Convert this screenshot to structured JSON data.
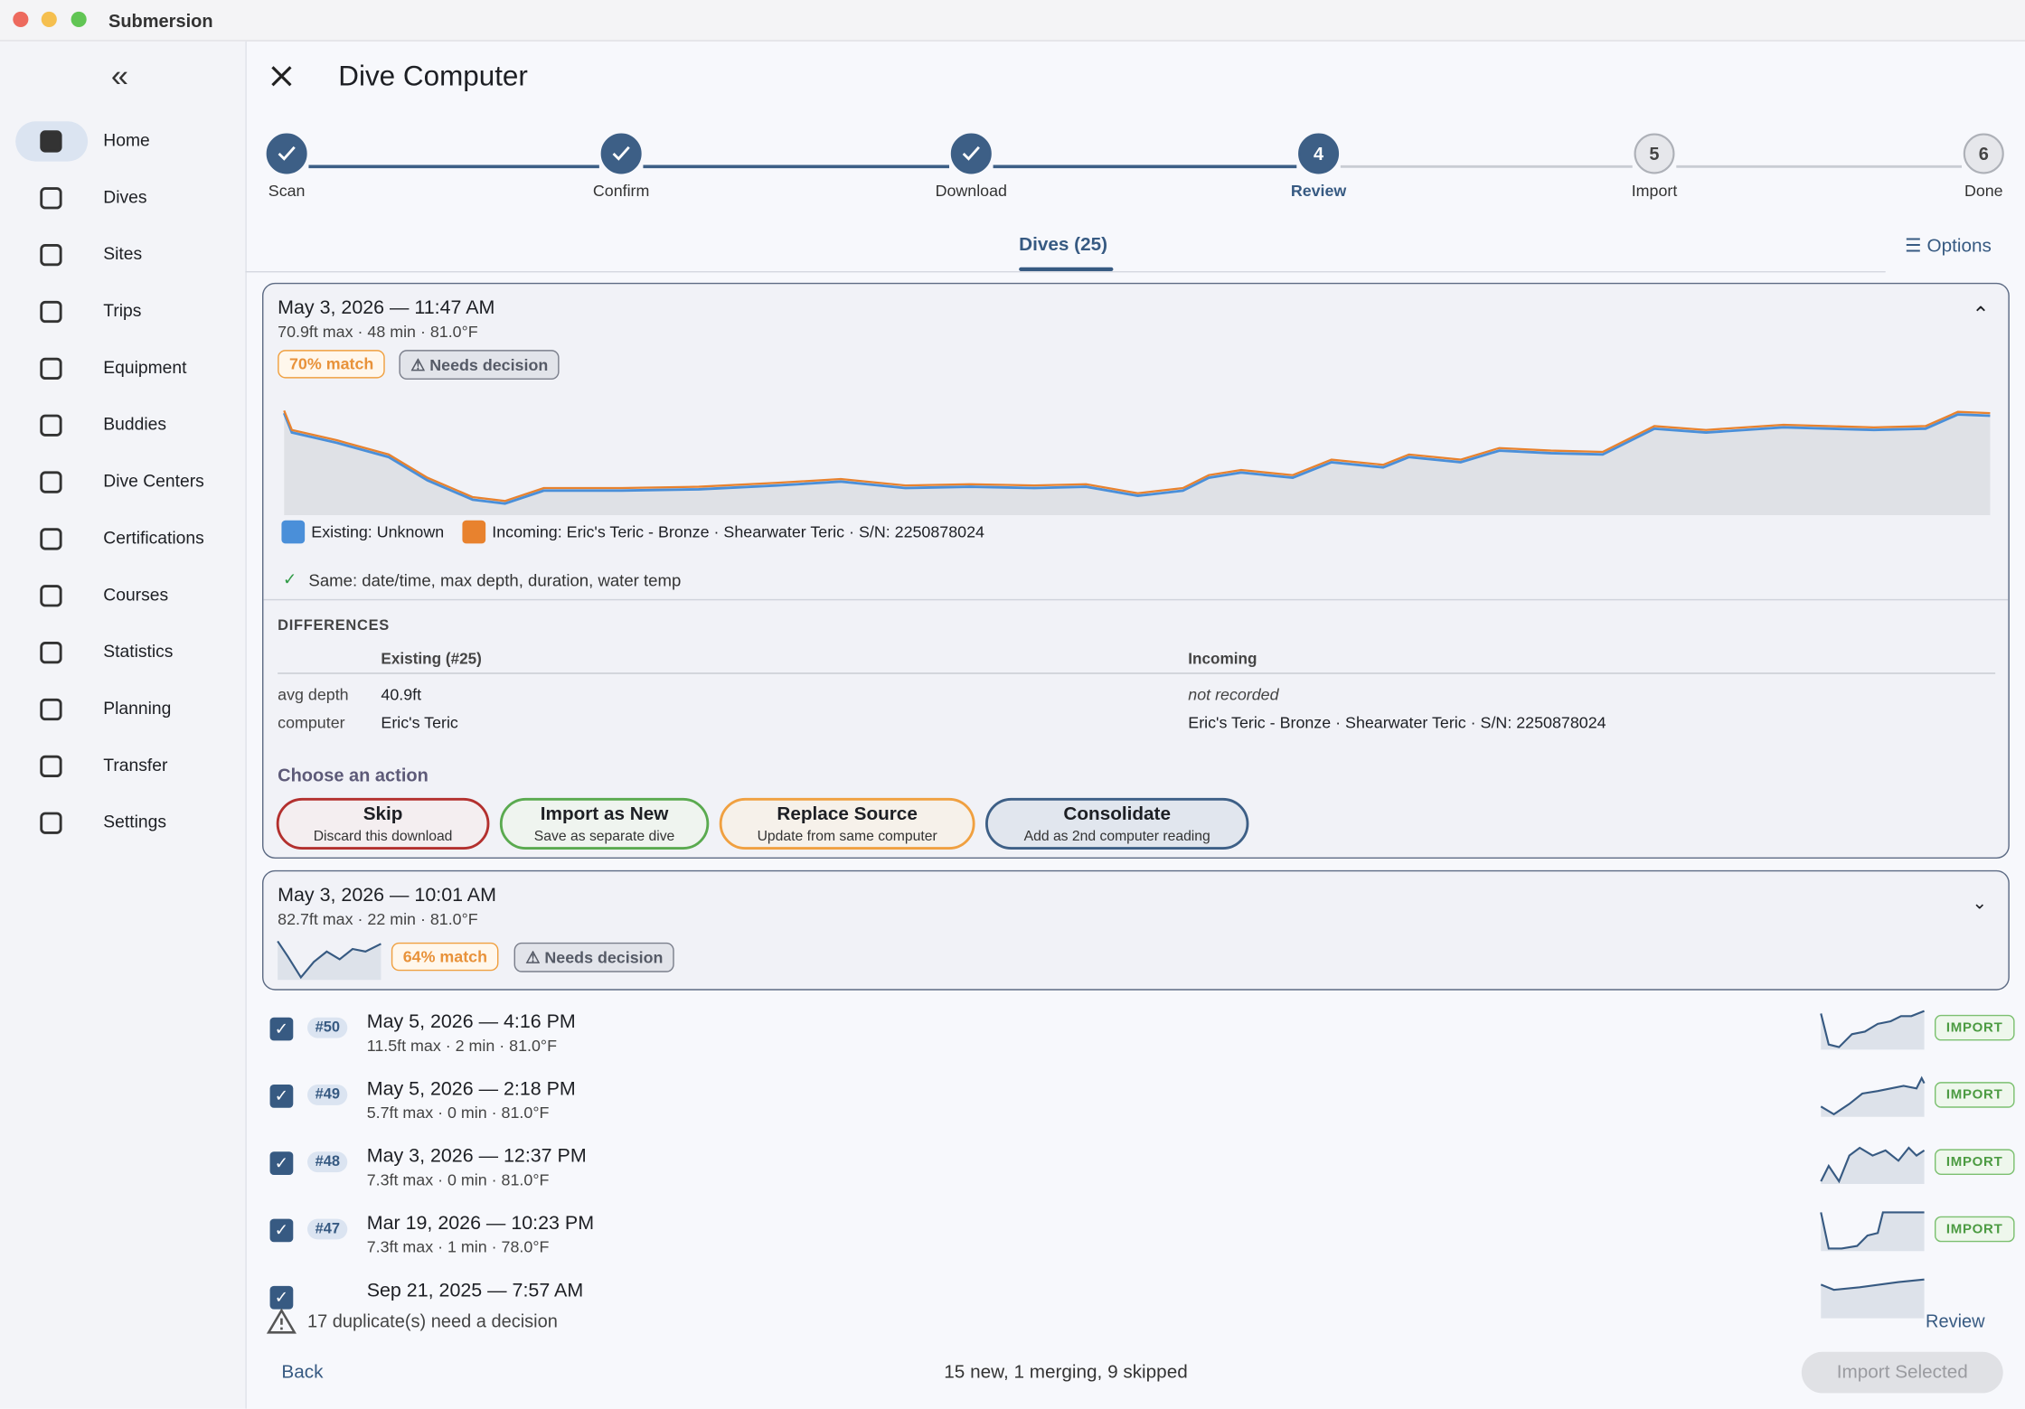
{
  "window": {
    "title": "Submersion"
  },
  "sidebar": {
    "items": [
      "Home",
      "Dives",
      "Sites",
      "Trips",
      "Equipment",
      "Buddies",
      "Dive Centers",
      "Certifications",
      "Courses",
      "Statistics",
      "Planning",
      "Transfer",
      "Settings"
    ]
  },
  "header": {
    "title": "Dive Computer"
  },
  "steps": [
    {
      "label": "Scan"
    },
    {
      "label": "Confirm"
    },
    {
      "label": "Download"
    },
    {
      "number": 4,
      "label": "Review"
    },
    {
      "number": 5,
      "label": "Import"
    },
    {
      "number": 6,
      "label": "Done"
    }
  ],
  "tabs": {
    "dives": "Dives (25)",
    "options": "Options"
  },
  "duplicates": [
    {
      "title": "May 3, 2026 — 11:47 AM",
      "stats": "70.9ft max · 48 min · 81.0°F",
      "match": "70% match",
      "status": "Needs decision",
      "legend_existing": "Existing: Unknown",
      "legend_incoming": "Incoming: Eric's Teric - Bronze · Shearwater Teric · S/N: 2250878024",
      "same": "Same: date/time, max depth, duration, water temp",
      "differences": {
        "heading": "DIFFERENCES",
        "columns": [
          "Existing (#25)",
          "Incoming"
        ],
        "rows": [
          {
            "field": "avg depth",
            "existing": "40.9ft",
            "incoming": "not recorded"
          },
          {
            "field": "computer",
            "existing": "Eric's Teric",
            "incoming": "Eric's Teric - Bronze · Shearwater Teric · S/N: 2250878024"
          }
        ]
      },
      "actions_heading": "Choose an action",
      "actions": [
        {
          "label": "Skip",
          "sub": "Discard this download"
        },
        {
          "label": "Import as New",
          "sub": "Save as separate dive"
        },
        {
          "label": "Replace Source",
          "sub": "Update from same computer"
        },
        {
          "label": "Consolidate",
          "sub": "Add as 2nd computer reading"
        }
      ]
    },
    {
      "title": "May 3, 2026 — 10:01 AM",
      "stats": "82.7ft max · 22 min · 81.0°F",
      "match": "64% match",
      "status": "Needs decision"
    }
  ],
  "dives": [
    {
      "number": "#50",
      "title": "May 5, 2026 — 4:16 PM",
      "stats": "11.5ft max · 2 min · 81.0°F",
      "status": "IMPORT"
    },
    {
      "number": "#49",
      "title": "May 5, 2026 — 2:18 PM",
      "stats": "5.7ft max · 0 min · 81.0°F",
      "status": "IMPORT"
    },
    {
      "number": "#48",
      "title": "May 3, 2026 — 12:37 PM",
      "stats": "7.3ft max · 0 min · 81.0°F",
      "status": "IMPORT"
    },
    {
      "number": "#47",
      "title": "Mar 19, 2026 — 10:23 PM",
      "stats": "7.3ft max · 1 min · 78.0°F",
      "status": "IMPORT"
    },
    {
      "title": "Sep 21, 2025 — 7:57 AM"
    }
  ],
  "footer": {
    "warning": "17 duplicate(s) need a decision",
    "review": "Review",
    "back": "Back",
    "summary": "15 new, 1 merging, 9 skipped",
    "import": "Import Selected"
  }
}
